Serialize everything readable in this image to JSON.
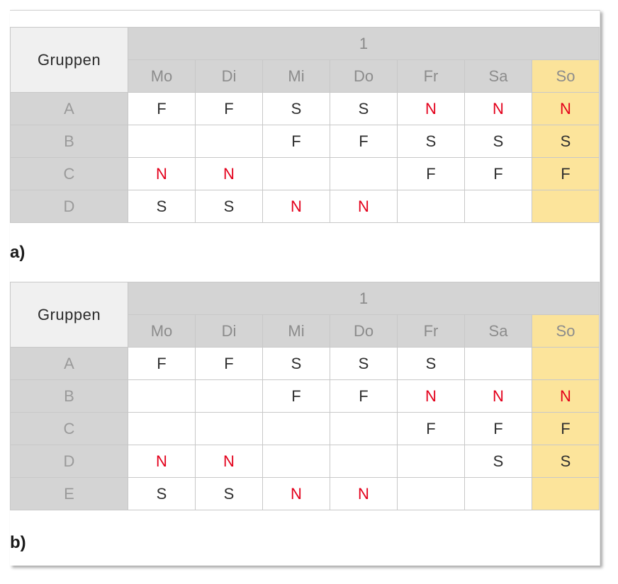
{
  "tables": [
    {
      "caption": "a)",
      "corner": "Gruppen",
      "week": "1",
      "days": [
        "Mo",
        "Di",
        "Mi",
        "Do",
        "Fr",
        "Sa",
        "So"
      ],
      "rows": [
        {
          "group": "A",
          "cells": [
            "F",
            "F",
            "S",
            "S",
            "N",
            "N",
            "N"
          ]
        },
        {
          "group": "B",
          "cells": [
            "",
            "",
            "F",
            "F",
            "S",
            "S",
            "S"
          ]
        },
        {
          "group": "C",
          "cells": [
            "N",
            "N",
            "",
            "",
            "F",
            "F",
            "F"
          ]
        },
        {
          "group": "D",
          "cells": [
            "S",
            "S",
            "N",
            "N",
            "",
            "",
            ""
          ]
        }
      ]
    },
    {
      "caption": "b)",
      "corner": "Gruppen",
      "week": "1",
      "days": [
        "Mo",
        "Di",
        "Mi",
        "Do",
        "Fr",
        "Sa",
        "So"
      ],
      "rows": [
        {
          "group": "A",
          "cells": [
            "F",
            "F",
            "S",
            "S",
            "S",
            "",
            ""
          ]
        },
        {
          "group": "B",
          "cells": [
            "",
            "",
            "F",
            "F",
            "N",
            "N",
            "N"
          ]
        },
        {
          "group": "C",
          "cells": [
            "",
            "",
            "",
            "",
            "F",
            "F",
            "F"
          ]
        },
        {
          "group": "D",
          "cells": [
            "N",
            "N",
            "",
            "",
            "",
            "S",
            "S"
          ]
        },
        {
          "group": "E",
          "cells": [
            "S",
            "S",
            "N",
            "N",
            "",
            "",
            ""
          ]
        }
      ]
    }
  ],
  "colors": {
    "header_gray": "#d4d4d4",
    "corner_bg": "#f0f0f0",
    "sunday_yellow": "#fce49b",
    "night_red": "#e3001b"
  }
}
